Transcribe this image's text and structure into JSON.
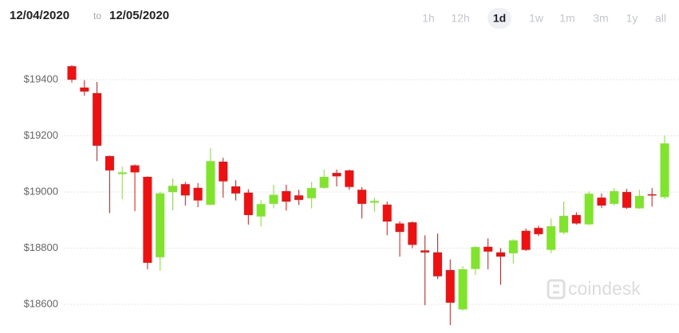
{
  "header": {
    "start_date": "12/04/2020",
    "separator": "to",
    "end_date": "12/05/2020",
    "ranges": [
      "1h",
      "12h",
      "1d",
      "1w",
      "1m",
      "3m",
      "1y",
      "all"
    ],
    "active_range_index": 2
  },
  "watermark": "coindesk",
  "chart_data": {
    "type": "candlestick",
    "up_color": "#7fe52a",
    "down_color": "#f01010",
    "ylim": [
      18500,
      19555
    ],
    "yticks": [
      {
        "value": 18600,
        "label": "$18600"
      },
      {
        "value": 18800,
        "label": "$18800"
      },
      {
        "value": 19000,
        "label": "$19000"
      },
      {
        "value": 19200,
        "label": "$19200"
      },
      {
        "value": 19400,
        "label": "$19400"
      }
    ],
    "grid": true,
    "open": [
      19448,
      19372,
      19352,
      19128,
      19064,
      19095,
      19054,
      18768,
      19000,
      19028,
      19015,
      18955,
      19108,
      19020,
      18998,
      18913,
      18958,
      19003,
      18988,
      18978,
      19015,
      19068,
      19077,
      19008,
      18962,
      18955,
      18888,
      18892,
      18792,
      18785,
      18722,
      18582,
      18726,
      18805,
      18785,
      18782,
      18862,
      18872,
      18794,
      18856,
      18918,
      18885,
      18980,
      18958,
      19000,
      18942,
      18992,
      18982
    ],
    "high": [
      19452,
      19398,
      19392,
      19130,
      19090,
      19098,
      19056,
      19000,
      19048,
      19036,
      19032,
      19156,
      19122,
      19042,
      19010,
      18972,
      19026,
      19026,
      19008,
      19036,
      19080,
      19080,
      19080,
      19018,
      18980,
      18966,
      18896,
      18895,
      18846,
      18852,
      18760,
      18736,
      18808,
      18835,
      18800,
      18832,
      18870,
      18880,
      18906,
      18966,
      18928,
      19002,
      18995,
      19014,
      19011,
      19008,
      19014,
      19201
    ],
    "low": [
      19390,
      19343,
      19110,
      18925,
      18975,
      18932,
      18725,
      18720,
      18935,
      18952,
      18946,
      18952,
      18980,
      18970,
      18884,
      18878,
      18942,
      18934,
      18954,
      18942,
      19012,
      19020,
      19008,
      18906,
      18930,
      18846,
      18770,
      18800,
      18597,
      18690,
      18526,
      18578,
      18705,
      18725,
      18670,
      18745,
      18790,
      18843,
      18782,
      18850,
      18884,
      18882,
      18943,
      18952,
      18940,
      18940,
      18948,
      18975
    ],
    "close": [
      19400,
      19358,
      19165,
      19077,
      19070,
      19070,
      18748,
      18995,
      19022,
      18988,
      18970,
      19110,
      19038,
      18995,
      18918,
      18957,
      18990,
      18966,
      18972,
      19014,
      19054,
      19056,
      19018,
      18958,
      18968,
      18895,
      18858,
      18812,
      18785,
      18700,
      18606,
      18725,
      18804,
      18788,
      18770,
      18828,
      18794,
      18850,
      18878,
      18915,
      18888,
      18994,
      18952,
      19003,
      18944,
      18986,
      18990,
      19173
    ]
  }
}
